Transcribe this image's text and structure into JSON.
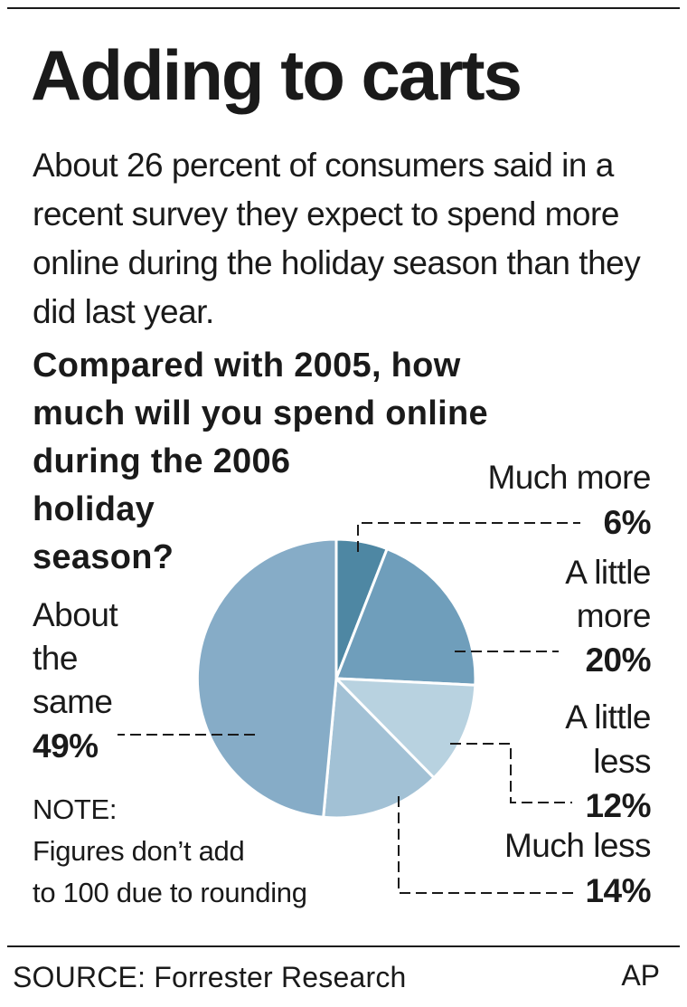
{
  "credit": "AP",
  "source": "SOURCE: Forrester Research",
  "note_lines": [
    "NOTE:",
    "Figures don’t add",
    "to 100 due to rounding"
  ],
  "chart_data": {
    "type": "pie",
    "title": "Adding to carts",
    "subtitle": "About 26 percent of consumers said in a recent survey they expect to spend more online during the holiday season than they did last year.",
    "question_lines": [
      "Compared with 2005, how",
      "much will you spend online",
      "during the 2006",
      "holiday",
      "season?"
    ],
    "slices": [
      {
        "label_lines": [
          "Much more"
        ],
        "value": 6,
        "value_label": "6%",
        "color": "#4e87a3"
      },
      {
        "label_lines": [
          "A little",
          "more"
        ],
        "value": 20,
        "value_label": "20%",
        "color": "#6f9ebb"
      },
      {
        "label_lines": [
          "A little",
          "less"
        ],
        "value": 12,
        "value_label": "12%",
        "color": "#b8d2e0"
      },
      {
        "label_lines": [
          "Much less"
        ],
        "value": 14,
        "value_label": "14%",
        "color": "#a2c1d5"
      },
      {
        "label_lines": [
          "About",
          "the",
          "same"
        ],
        "value": 49,
        "value_label": "49%",
        "color": "#86acc7"
      }
    ]
  }
}
